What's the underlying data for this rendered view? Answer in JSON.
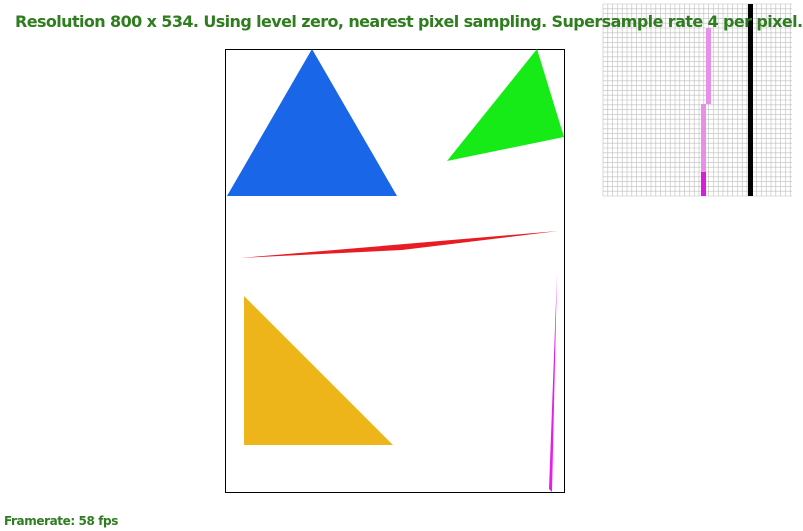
{
  "status": {
    "text": "Resolution 800 x 534. Using level zero, nearest pixel sampling. Supersample rate 4 per pixel.",
    "color": "#2e7d1e"
  },
  "framerate": {
    "text": "Framerate: 58 fps",
    "color": "#2e7d1e"
  },
  "scene": {
    "frame_color": "#000000",
    "shapes": [
      {
        "name": "blue-triangle",
        "color": "#1a66e8"
      },
      {
        "name": "green-triangle",
        "color": "#16ea17"
      },
      {
        "name": "red-sliver-triangle",
        "color": "#e81c22"
      },
      {
        "name": "orange-triangle",
        "color": "#eeb51b"
      },
      {
        "name": "magenta-sliver-triangle",
        "color": "#e81ee8"
      }
    ]
  },
  "zoom_view": {
    "grid_color": "#bdbdbd",
    "light_pink": "#e890e8",
    "deep_magenta": "#d81ed8",
    "black_line": "#000000"
  }
}
